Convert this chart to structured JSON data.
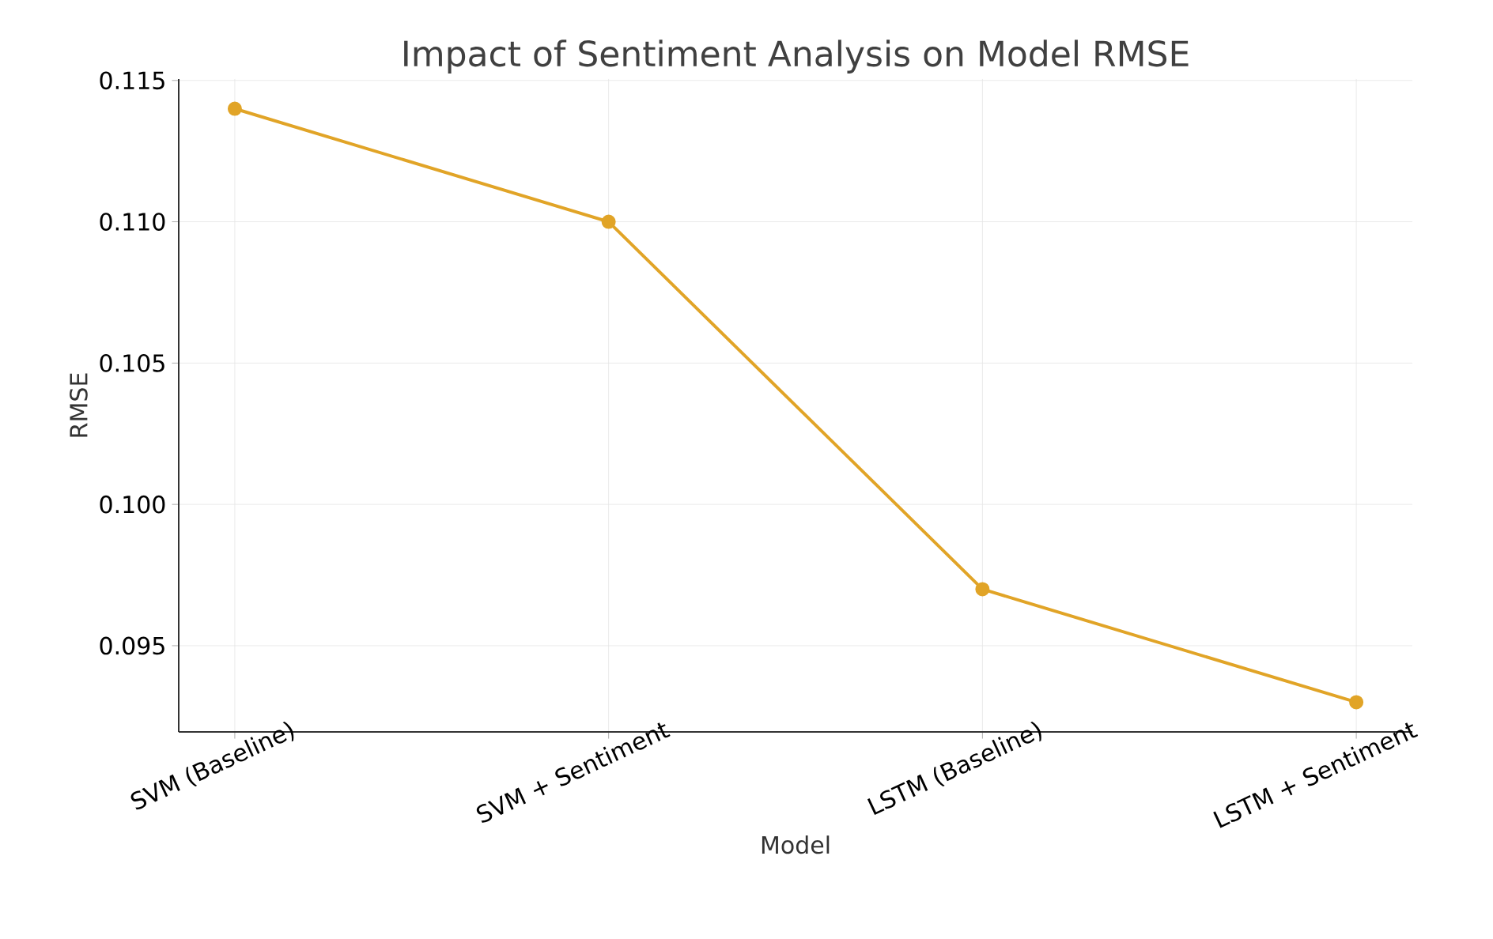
{
  "chart_data": {
    "type": "line",
    "title": "Impact of Sentiment Analysis on Model RMSE",
    "xlabel": "Model",
    "ylabel": "RMSE",
    "categories": [
      "SVM (Baseline)",
      "SVM + Sentiment",
      "LSTM (Baseline)",
      "LSTM + Sentiment"
    ],
    "series": [
      {
        "color": "#e1a427",
        "values": [
          0.114,
          0.11,
          0.097,
          0.093
        ]
      }
    ],
    "ylim": [
      0.09195,
      0.11505
    ],
    "yticks": [
      {
        "value": 0.095,
        "label": "0.095"
      },
      {
        "value": 0.1,
        "label": "0.100"
      },
      {
        "value": 0.105,
        "label": "0.105"
      },
      {
        "value": 0.11,
        "label": "0.110"
      },
      {
        "value": 0.115,
        "label": "0.115"
      }
    ],
    "grid": true,
    "marker": "circle",
    "line_style": "solid"
  }
}
